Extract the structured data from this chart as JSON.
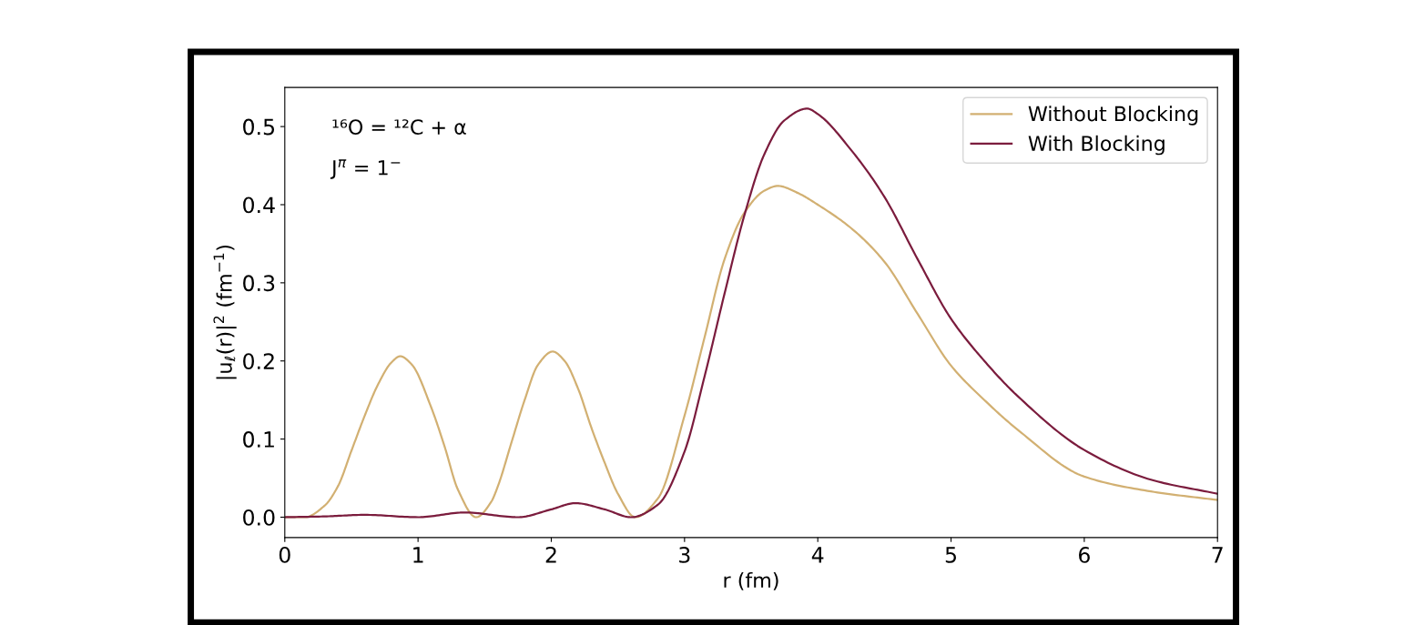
{
  "chart_data": {
    "type": "line",
    "xlabel": "r (fm)",
    "ylabel": "|u$_{ℓ}$(r)|$^{2}$ (fm$^{−1}$)",
    "annotations": [
      "¹⁶O = ¹²C + α",
      "J$^{π}$ = 1$^{−}$"
    ],
    "xlim": [
      0,
      7
    ],
    "xticks": [
      0,
      1,
      2,
      3,
      4,
      5,
      6,
      7
    ],
    "ylim": [
      -0.026,
      0.55
    ],
    "yticks": [
      {
        "value": 0,
        "label": "0.0"
      },
      0.1,
      0.2,
      0.3,
      0.4,
      0.5
    ],
    "legend": "top right",
    "grid": false,
    "series": [
      {
        "name": "Without Blocking",
        "color": "#d2b072",
        "x": [
          0,
          0.15,
          0.3,
          0.4,
          0.5,
          0.6,
          0.7,
          0.8,
          0.866,
          0.95,
          1.1,
          1.2,
          1.3,
          1.436,
          1.55,
          1.6,
          1.7,
          1.8,
          1.9,
          2.01,
          2.1,
          2.2,
          2.3,
          2.4,
          2.5,
          2.63,
          2.8,
          3.0,
          3.15,
          3.3,
          3.45,
          3.6,
          3.7,
          3.85,
          4.0,
          4.25,
          4.5,
          4.75,
          5.0,
          5.25,
          5.5,
          6.0,
          6.5,
          7.0
        ],
        "values": [
          0,
          0,
          0.015,
          0.04,
          0.085,
          0.13,
          0.17,
          0.198,
          0.206,
          0.196,
          0.14,
          0.09,
          0.035,
          0.0,
          0.02,
          0.04,
          0.095,
          0.15,
          0.195,
          0.212,
          0.2,
          0.165,
          0.115,
          0.07,
          0.03,
          0.0,
          0.024,
          0.13,
          0.23,
          0.33,
          0.39,
          0.418,
          0.424,
          0.415,
          0.4,
          0.37,
          0.327,
          0.26,
          0.194,
          0.15,
          0.112,
          0.052,
          0.033,
          0.022
        ]
      },
      {
        "name": "With Blocking",
        "color": "#7b1c3d",
        "x": [
          0,
          0.3,
          0.6,
          1.0,
          1.35,
          1.75,
          2.0,
          2.18,
          2.4,
          2.6,
          2.8,
          3.0,
          3.15,
          3.3,
          3.45,
          3.6,
          3.75,
          3.92,
          4.0,
          4.25,
          4.5,
          4.75,
          5.0,
          5.25,
          5.5,
          6.0,
          6.5,
          7.0
        ],
        "values": [
          0,
          0.001,
          0.003,
          0.0,
          0.006,
          0.0,
          0.01,
          0.018,
          0.01,
          0.0,
          0.016,
          0.084,
          0.18,
          0.286,
          0.387,
          0.465,
          0.508,
          0.523,
          0.516,
          0.47,
          0.41,
          0.33,
          0.254,
          0.2,
          0.155,
          0.086,
          0.048,
          0.03
        ]
      }
    ]
  }
}
